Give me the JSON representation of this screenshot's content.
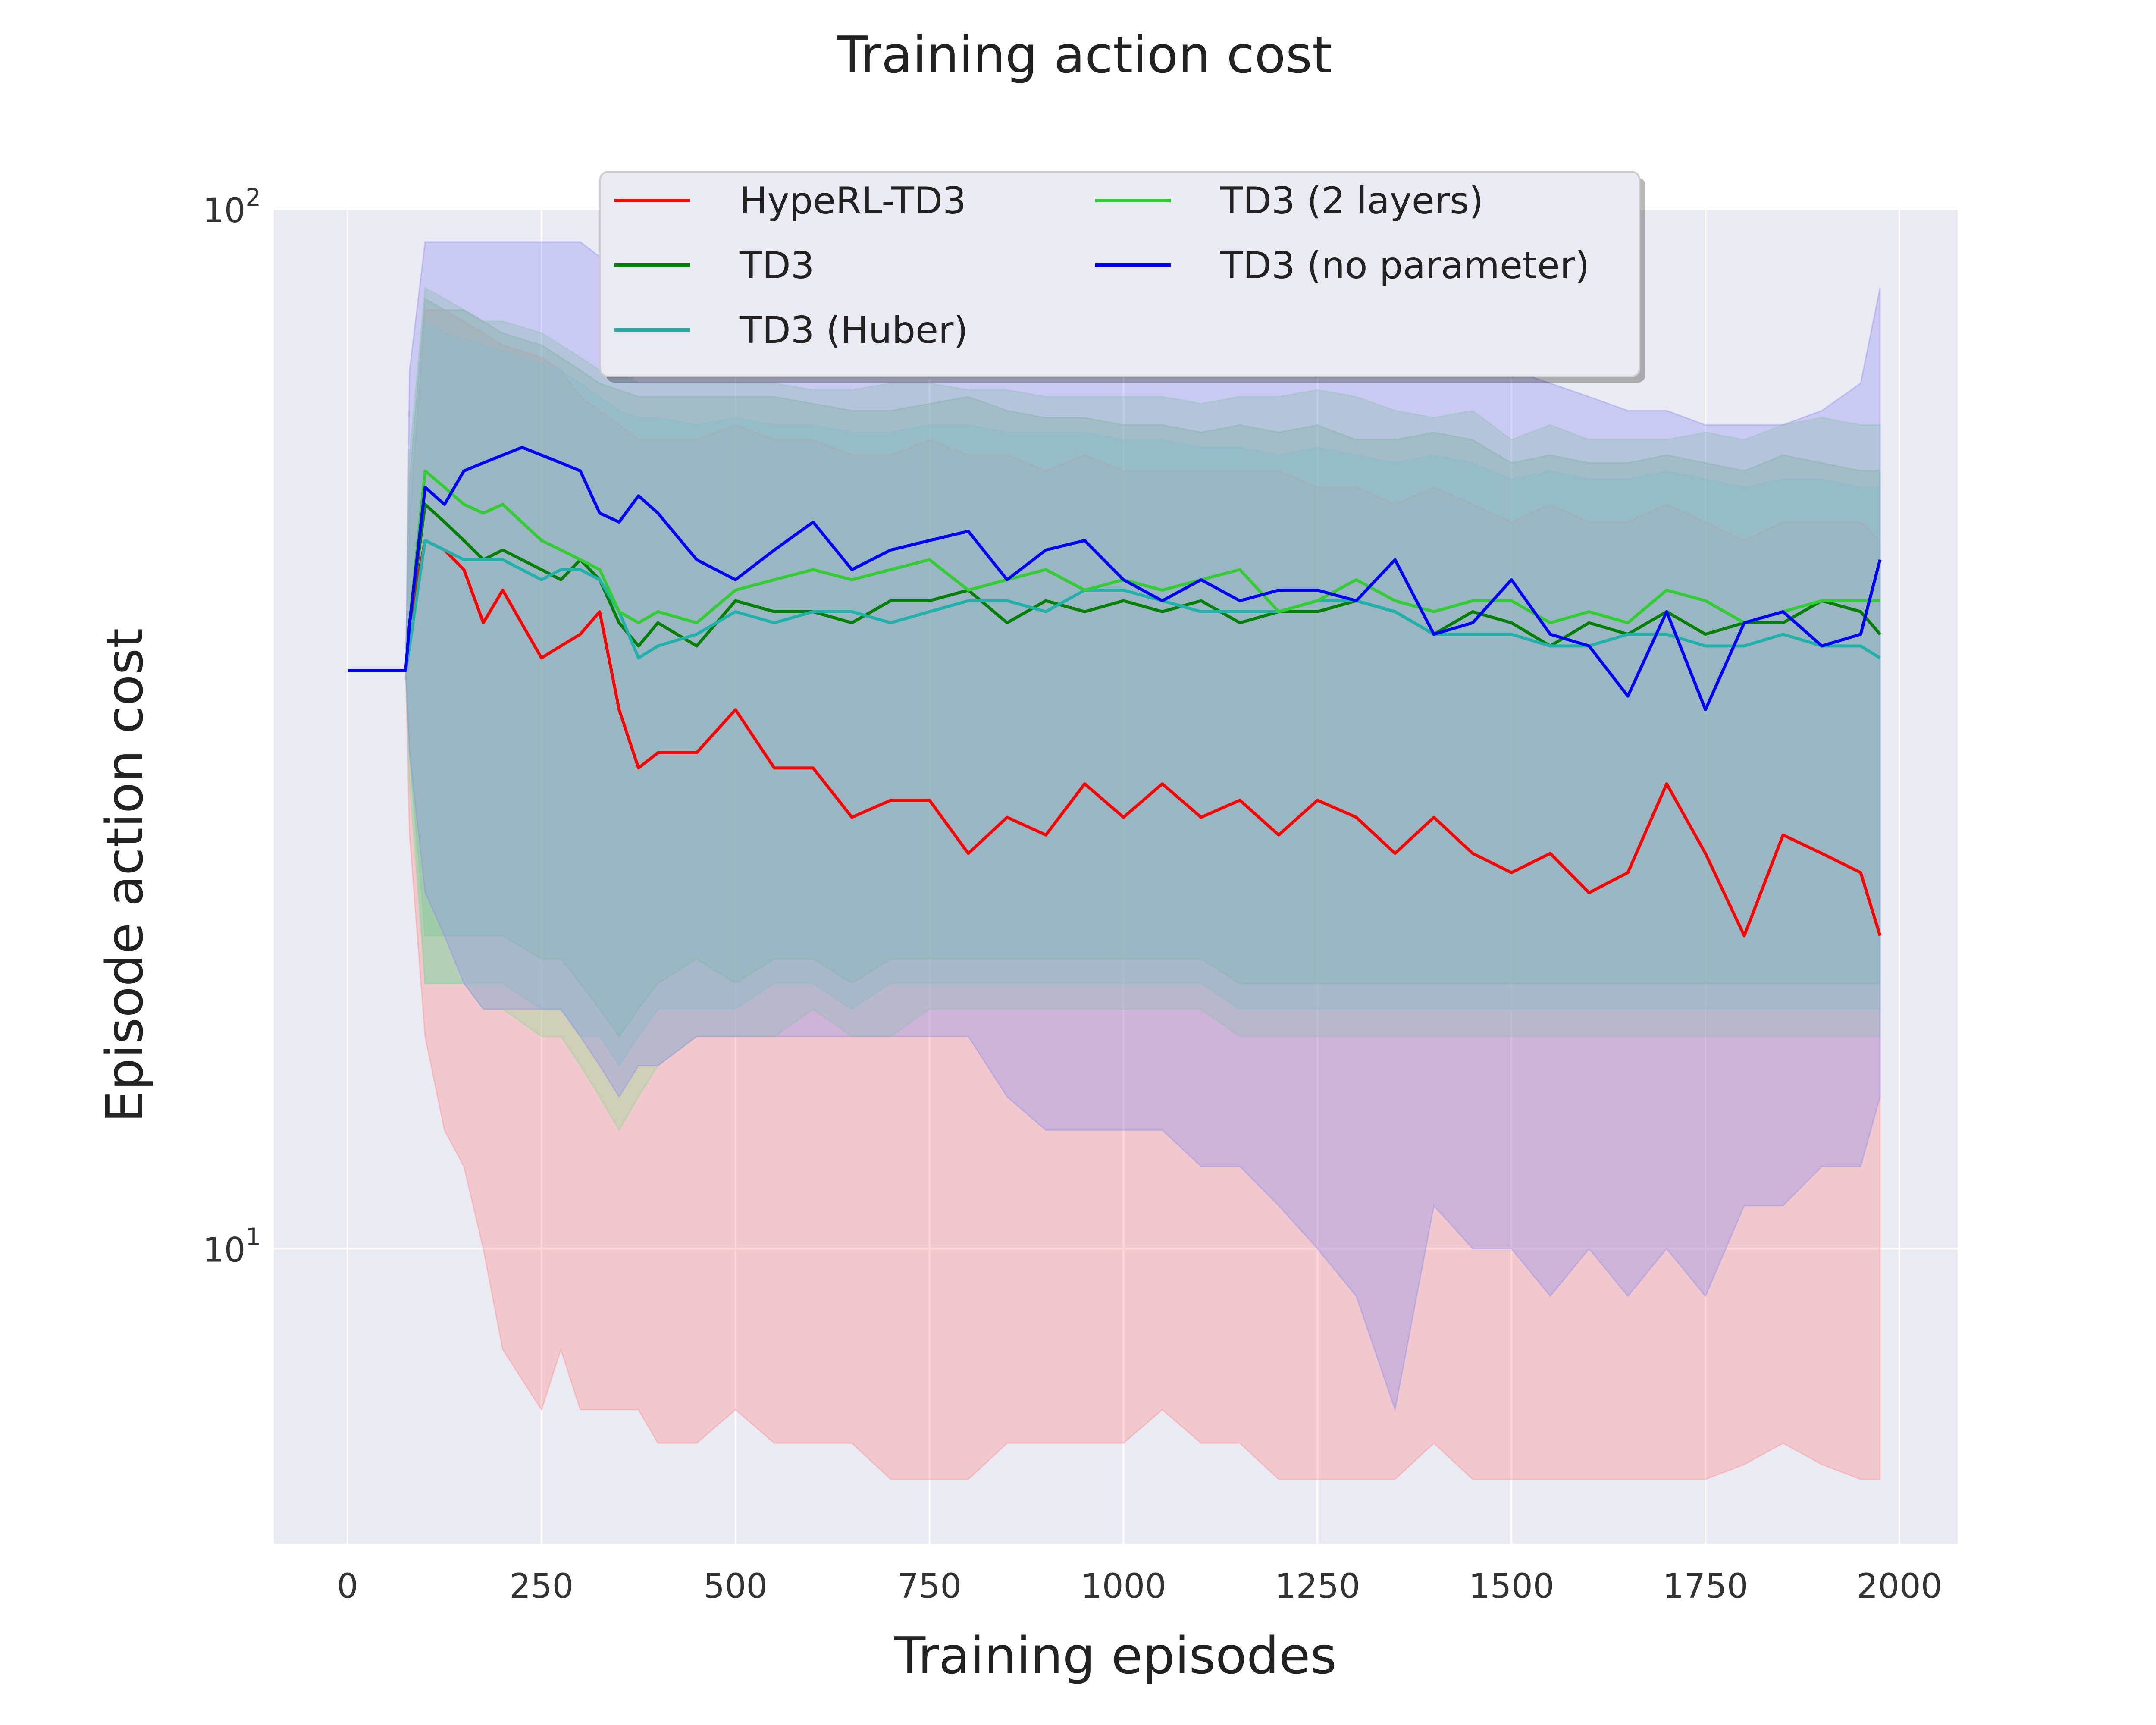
{
  "chart_data": {
    "type": "line",
    "title": "Training action cost",
    "xlabel": "Training episodes",
    "ylabel": "Episode action cost",
    "yscale": "log",
    "xlim": [
      -95,
      2075
    ],
    "ylim": [
      5.2,
      100
    ],
    "xticks": [
      0,
      250,
      500,
      750,
      1000,
      1250,
      1500,
      1750,
      2000
    ],
    "xtick_labels": [
      "0",
      "250",
      "500",
      "750",
      "1000",
      "1250",
      "1500",
      "1750",
      "2000"
    ],
    "yticks": [
      {
        "value": 100,
        "base": "10",
        "exp": "2"
      },
      {
        "value": 10,
        "base": "10",
        "exp": "1"
      }
    ],
    "grid": true,
    "legend": {
      "position": "top-center",
      "columns": 2
    },
    "series": [
      {
        "name": "HypeRL-TD3",
        "color": "#ff0000",
        "band_color": "#ff8a8a",
        "x": [
          0,
          75,
          80,
          100,
          125,
          150,
          175,
          200,
          250,
          275,
          300,
          325,
          350,
          375,
          400,
          450,
          500,
          550,
          600,
          650,
          700,
          750,
          800,
          850,
          900,
          950,
          1000,
          1050,
          1100,
          1150,
          1200,
          1250,
          1300,
          1350,
          1400,
          1450,
          1500,
          1550,
          1600,
          1650,
          1700,
          1750,
          1800,
          1850,
          1900,
          1950,
          1975
        ],
        "mean": [
          36,
          36,
          40,
          48,
          47,
          45,
          40,
          43,
          37,
          38,
          39,
          41,
          33,
          29,
          30,
          30,
          33,
          29,
          29,
          26,
          27,
          27,
          24,
          26,
          25,
          28,
          26,
          28,
          26,
          27,
          25,
          27,
          26,
          24,
          26,
          24,
          23,
          24,
          22,
          23,
          28,
          24,
          20,
          25,
          24,
          23,
          20
        ],
        "lower": [
          36,
          36,
          25,
          16,
          13,
          12,
          10,
          8,
          7,
          8,
          7,
          7,
          7,
          7,
          6.5,
          6.5,
          7,
          6.5,
          6.5,
          6.5,
          6,
          6,
          6,
          6.5,
          6.5,
          6.5,
          6.5,
          7,
          6.5,
          6.5,
          6,
          6,
          6,
          6,
          6.5,
          6,
          6,
          6,
          6,
          6,
          6,
          6,
          6.2,
          6.5,
          6.2,
          6,
          6
        ],
        "upper": [
          36,
          36,
          50,
          80,
          80,
          78,
          76,
          74,
          72,
          70,
          66,
          64,
          62,
          60,
          60,
          60,
          62,
          60,
          60,
          58,
          58,
          60,
          58,
          58,
          56,
          58,
          56,
          56,
          56,
          56,
          56,
          54,
          54,
          52,
          54,
          52,
          50,
          52,
          50,
          50,
          52,
          50,
          48,
          50,
          50,
          50,
          48
        ]
      },
      {
        "name": "TD3",
        "color": "#007f00",
        "band_color": "#6fb66f",
        "x": [
          0,
          75,
          80,
          100,
          125,
          150,
          175,
          200,
          250,
          275,
          300,
          325,
          350,
          375,
          400,
          450,
          500,
          550,
          600,
          650,
          700,
          750,
          800,
          850,
          900,
          950,
          1000,
          1050,
          1100,
          1150,
          1200,
          1250,
          1300,
          1350,
          1400,
          1450,
          1500,
          1550,
          1600,
          1650,
          1700,
          1750,
          1800,
          1850,
          1900,
          1950,
          1975
        ],
        "mean": [
          36,
          36,
          40,
          52,
          50,
          48,
          46,
          47,
          45,
          44,
          46,
          44,
          40,
          38,
          40,
          38,
          42,
          41,
          41,
          40,
          42,
          42,
          43,
          40,
          42,
          41,
          42,
          41,
          42,
          40,
          41,
          41,
          42,
          41,
          39,
          41,
          40,
          38,
          40,
          39,
          41,
          39,
          40,
          40,
          42,
          41,
          39
        ],
        "lower": [
          36,
          36,
          30,
          20,
          20,
          20,
          20,
          20,
          19,
          19,
          18,
          17,
          16,
          17,
          18,
          19,
          18,
          19,
          19,
          18,
          19,
          19,
          19,
          19,
          19,
          19,
          19,
          19,
          19,
          18,
          18,
          18,
          18,
          18,
          18,
          18,
          18,
          18,
          18,
          18,
          18,
          18,
          18,
          18,
          18,
          18,
          18
        ],
        "upper": [
          36,
          36,
          55,
          82,
          80,
          80,
          78,
          76,
          74,
          72,
          70,
          68,
          67,
          66,
          66,
          66,
          66,
          66,
          65,
          64,
          64,
          65,
          66,
          64,
          63,
          63,
          62,
          62,
          61,
          62,
          61,
          62,
          60,
          60,
          61,
          60,
          57,
          58,
          57,
          57,
          58,
          57,
          56,
          58,
          57,
          56,
          56
        ]
      },
      {
        "name": "TD3 (Huber)",
        "color": "#20b2aa",
        "band_color": "#7fcccc",
        "x": [
          0,
          75,
          80,
          100,
          125,
          150,
          175,
          200,
          250,
          275,
          300,
          325,
          350,
          375,
          400,
          450,
          500,
          550,
          600,
          650,
          700,
          750,
          800,
          850,
          900,
          950,
          1000,
          1050,
          1100,
          1150,
          1200,
          1250,
          1300,
          1350,
          1400,
          1450,
          1500,
          1550,
          1600,
          1650,
          1700,
          1750,
          1800,
          1850,
          1900,
          1950,
          1975
        ],
        "mean": [
          36,
          36,
          38,
          48,
          47,
          46,
          46,
          46,
          44,
          45,
          45,
          44,
          41,
          37,
          38,
          39,
          41,
          40,
          41,
          41,
          40,
          41,
          42,
          42,
          41,
          43,
          43,
          42,
          41,
          41,
          41,
          42,
          42,
          41,
          39,
          39,
          39,
          38,
          38,
          39,
          39,
          38,
          38,
          39,
          38,
          38,
          37
        ],
        "lower": [
          36,
          36,
          30,
          18,
          18,
          18,
          18,
          18,
          17,
          17,
          16,
          16,
          15,
          16,
          17,
          17,
          17,
          18,
          18,
          17,
          18,
          18,
          18,
          18,
          18,
          18,
          18,
          18,
          18,
          17,
          17,
          17,
          17,
          17,
          17,
          17,
          17,
          17,
          17,
          17,
          17,
          17,
          17,
          17,
          17,
          17,
          17
        ],
        "upper": [
          36,
          36,
          52,
          78,
          76,
          75,
          74,
          73,
          71,
          70,
          68,
          66,
          64,
          63,
          63,
          62,
          63,
          62,
          62,
          61,
          61,
          62,
          62,
          61,
          61,
          61,
          60,
          60,
          59,
          59,
          58,
          59,
          58,
          57,
          58,
          57,
          55,
          56,
          55,
          55,
          56,
          55,
          54,
          55,
          55,
          54,
          54
        ]
      },
      {
        "name": "TD3 (2 layers)",
        "color": "#32cd32",
        "band_color": "#8fd98f",
        "x": [
          0,
          75,
          80,
          100,
          125,
          150,
          175,
          200,
          250,
          275,
          300,
          325,
          350,
          375,
          400,
          450,
          500,
          550,
          600,
          650,
          700,
          750,
          800,
          850,
          900,
          950,
          1000,
          1050,
          1100,
          1150,
          1200,
          1250,
          1300,
          1350,
          1400,
          1450,
          1500,
          1550,
          1600,
          1650,
          1700,
          1750,
          1800,
          1850,
          1900,
          1950,
          1975
        ],
        "mean": [
          36,
          36,
          40,
          56,
          54,
          52,
          51,
          52,
          48,
          47,
          46,
          45,
          41,
          40,
          41,
          40,
          43,
          44,
          45,
          44,
          45,
          46,
          43,
          44,
          45,
          43,
          44,
          43,
          44,
          45,
          41,
          42,
          44,
          42,
          41,
          42,
          42,
          40,
          41,
          40,
          43,
          42,
          40,
          41,
          42,
          42,
          42
        ],
        "lower": [
          36,
          36,
          28,
          18,
          18,
          18,
          17,
          17,
          16,
          16,
          15,
          14,
          13,
          14,
          15,
          16,
          16,
          16,
          17,
          16,
          16,
          17,
          17,
          17,
          17,
          17,
          17,
          17,
          17,
          16,
          16,
          16,
          16,
          16,
          16,
          16,
          16,
          16,
          16,
          16,
          16,
          16,
          16,
          16,
          16,
          16,
          16
        ],
        "upper": [
          36,
          36,
          58,
          84,
          82,
          80,
          78,
          78,
          76,
          74,
          72,
          70,
          70,
          68,
          68,
          68,
          68,
          68,
          67,
          67,
          68,
          68,
          67,
          67,
          66,
          66,
          66,
          66,
          65,
          66,
          66,
          67,
          66,
          64,
          63,
          64,
          60,
          62,
          60,
          60,
          60,
          61,
          60,
          62,
          63,
          62,
          62
        ]
      },
      {
        "name": "TD3 (no parameter)",
        "color": "#0000ff",
        "band_color": "#8c8cf0",
        "x": [
          0,
          75,
          80,
          100,
          125,
          150,
          175,
          200,
          225,
          250,
          275,
          300,
          325,
          350,
          375,
          400,
          450,
          500,
          550,
          600,
          650,
          700,
          750,
          800,
          850,
          900,
          950,
          1000,
          1050,
          1100,
          1150,
          1200,
          1250,
          1300,
          1350,
          1400,
          1450,
          1500,
          1550,
          1600,
          1650,
          1700,
          1750,
          1800,
          1850,
          1900,
          1950,
          1975
        ],
        "mean": [
          36,
          36,
          40,
          54,
          52,
          56,
          57,
          58,
          59,
          58,
          57,
          56,
          51,
          50,
          53,
          51,
          46,
          44,
          47,
          50,
          45,
          47,
          48,
          49,
          44,
          47,
          48,
          44,
          42,
          44,
          42,
          43,
          43,
          42,
          46,
          39,
          40,
          44,
          39,
          38,
          34,
          41,
          33,
          40,
          41,
          38,
          39,
          46
        ],
        "lower": [
          36,
          36,
          30,
          22,
          20,
          18,
          17,
          17,
          17,
          17,
          17,
          16,
          15,
          14,
          15,
          15,
          16,
          16,
          16,
          16,
          16,
          16,
          16,
          16,
          14,
          13,
          13,
          13,
          13,
          12,
          12,
          11,
          10,
          9,
          7,
          11,
          10,
          10,
          9,
          10,
          9,
          10,
          9,
          11,
          11,
          12,
          12,
          14
        ],
        "upper": [
          36,
          36,
          70,
          93,
          93,
          93,
          93,
          93,
          93,
          93,
          93,
          93,
          90,
          88,
          86,
          86,
          84,
          82,
          80,
          80,
          80,
          80,
          80,
          80,
          80,
          78,
          78,
          76,
          76,
          76,
          76,
          76,
          76,
          76,
          75,
          72,
          72,
          70,
          68,
          66,
          64,
          64,
          62,
          62,
          62,
          64,
          68,
          84
        ]
      }
    ]
  }
}
